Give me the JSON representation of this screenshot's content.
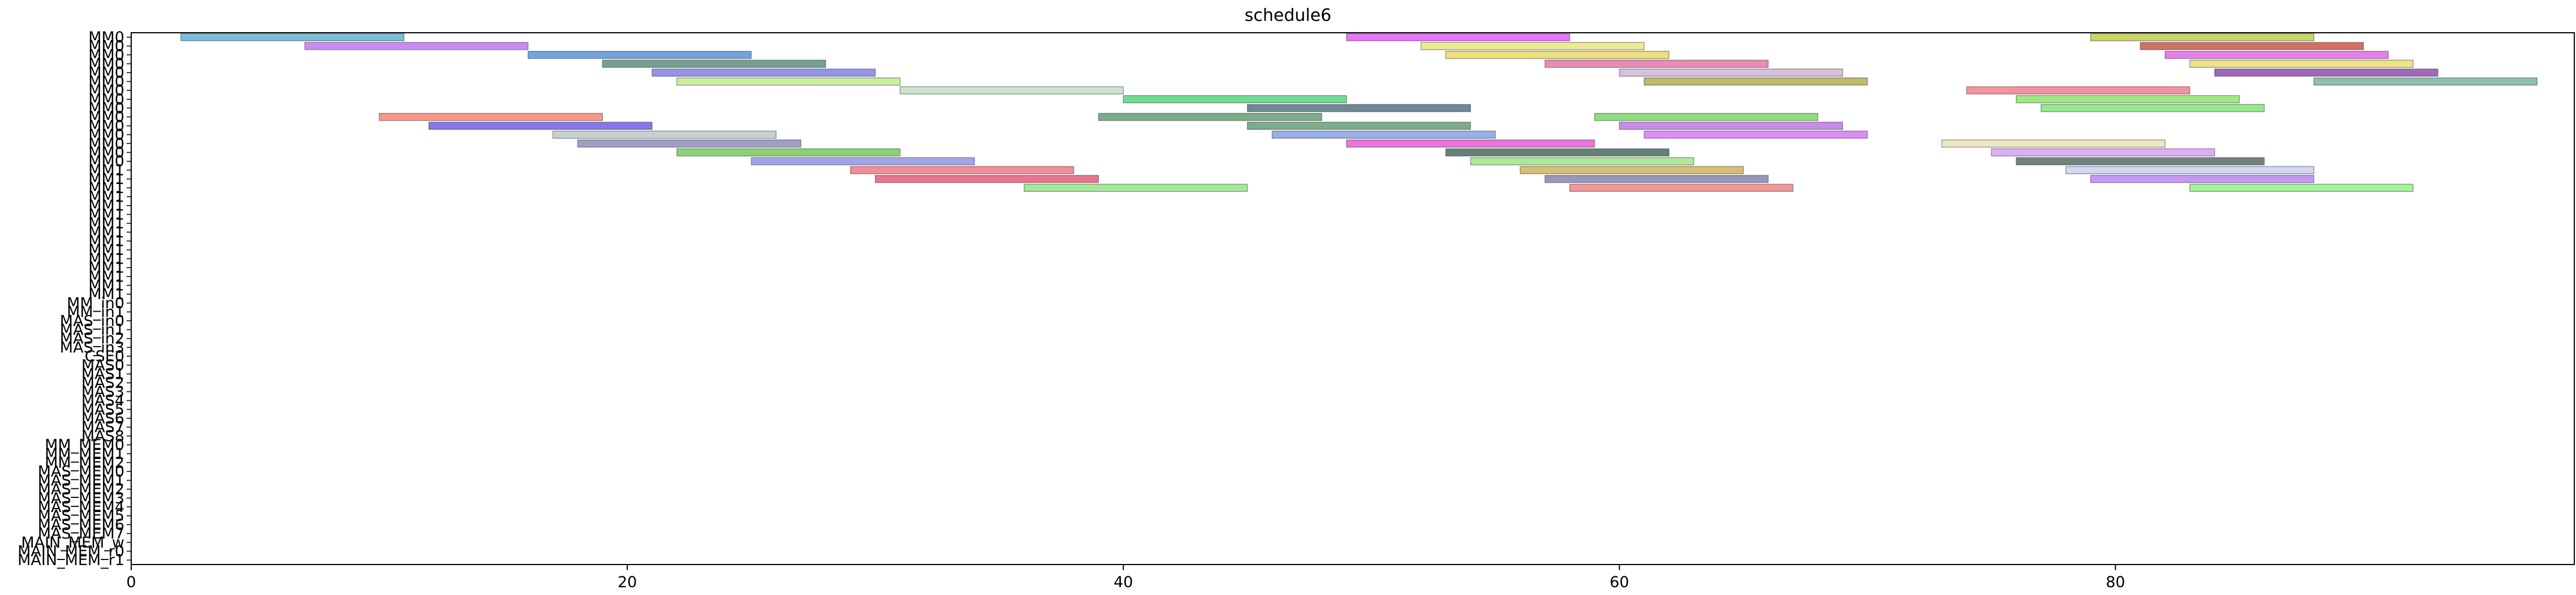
{
  "chart_data": {
    "type": "gantt",
    "title": "schedule6",
    "xlabel": "",
    "ylabel": "",
    "xlim": [
      0,
      98.5
    ],
    "x_ticks": [
      0,
      20,
      40,
      60,
      80
    ],
    "grid": false,
    "rows": [
      "MM0",
      "MM0",
      "MM0",
      "MM0",
      "MM0",
      "MM0",
      "MM0",
      "MM0",
      "MM0",
      "MM0",
      "MM0",
      "MM0",
      "MM0",
      "MM0",
      "MM0",
      "MM1",
      "MM1",
      "MM1",
      "MM1",
      "MM1",
      "MM1",
      "MM1",
      "MM1",
      "MM1",
      "MM1",
      "MM1",
      "MM1",
      "MM1",
      "MM1",
      "MM1",
      "MM_in0",
      "MM_in1",
      "MAS_in0",
      "MAS_in1",
      "MAS_in2",
      "MAS_in3",
      "CSE0",
      "MAS0",
      "MAS1",
      "MAS2",
      "MAS3",
      "MAS4",
      "MAS5",
      "MAS6",
      "MAS7",
      "MAS8",
      "MM_MEM0",
      "MM_MEM1",
      "MM_MEM2",
      "MAS_MEM0",
      "MAS_MEM1",
      "MAS_MEM2",
      "MAS_MEM3",
      "MAS_MEM4",
      "MAS_MEM5",
      "MAS_MEM6",
      "MAS_MEM7",
      "MAIN_MEM_w",
      "MAIN_MEM_r0",
      "MAIN_MEM_r1"
    ],
    "y_tick_labels": [
      "MM0",
      "MM0",
      "MM0",
      "MM0",
      "MM0",
      "MM0",
      "MM0",
      "MM0",
      "MM0",
      "MM0",
      "MM0",
      "MM0",
      "MM0",
      "MM0",
      "MM0",
      "MM1",
      "MM1",
      "MM1",
      "MM1",
      "MM1",
      "MM1",
      "MM1",
      "MM1",
      "MM1",
      "MM1",
      "MM1",
      "MM1",
      "MM1",
      "MM1",
      "MM1",
      "MM_in0",
      "MM_in1",
      "MAS_in0",
      "MAS_in1",
      "MAS_in2",
      "MAS_in3",
      "CSE0",
      "MAS0",
      "MAS1",
      "MAS2",
      "MAS3",
      "MAS4",
      "MAS5",
      "MAS6",
      "MAS7",
      "MAS8",
      "MM_MEM0",
      "MM_MEM1",
      "MM_MEM2",
      "MAS_MEM0",
      "MAS_MEM1",
      "MAS_MEM2",
      "MAS_MEM3",
      "MAS_MEM4",
      "MAS_MEM5",
      "MAS_MEM6",
      "MAS_MEM7",
      "MAIN_MEM_w",
      "MAIN_MEM_r0",
      "MAIN_MEM_r1"
    ],
    "series": [
      {
        "values": [
          [
            0,
            2,
            11,
            "#4aa3c7"
          ],
          [
            0,
            49,
            58,
            "#e040fb"
          ],
          [
            0,
            79,
            88,
            "#b5c72b"
          ],
          [
            1,
            7,
            16,
            "#b45fef"
          ],
          [
            1,
            52,
            61,
            "#e8e06a"
          ],
          [
            1,
            81,
            90,
            "#c0392b"
          ],
          [
            2,
            16,
            25,
            "#3a7fd0"
          ],
          [
            2,
            53,
            62,
            "#e7d24a"
          ],
          [
            2,
            82,
            91,
            "#d94fe0"
          ],
          [
            3,
            19,
            28,
            "#3f7a6a"
          ],
          [
            3,
            57,
            66,
            "#e0609a"
          ],
          [
            3,
            83,
            92,
            "#e8d85a"
          ],
          [
            4,
            21,
            30,
            "#6b6be0"
          ],
          [
            4,
            60,
            69,
            "#c7a9d0"
          ],
          [
            4,
            84,
            93,
            "#7a2fa0"
          ],
          [
            5,
            22,
            31,
            "#b6e878"
          ],
          [
            5,
            61,
            70,
            "#a8a030"
          ],
          [
            5,
            88,
            97,
            "#5fa890"
          ],
          [
            6,
            31,
            40,
            "#b9d9b9"
          ],
          [
            6,
            74,
            83,
            "#f06a78"
          ],
          [
            7,
            40,
            49,
            "#35d06a"
          ],
          [
            7,
            76,
            85,
            "#7ce050"
          ],
          [
            8,
            45,
            54,
            "#3a5a70"
          ],
          [
            8,
            77,
            86,
            "#6ee060"
          ],
          [
            9,
            10,
            19,
            "#f07060"
          ],
          [
            9,
            39,
            48,
            "#4a8c5c"
          ],
          [
            9,
            59,
            68,
            "#6ad050"
          ],
          [
            10,
            12,
            21,
            "#5a40e0"
          ],
          [
            10,
            45,
            54,
            "#4a8c5c"
          ],
          [
            10,
            60,
            69,
            "#b05fe0"
          ],
          [
            11,
            17,
            26,
            "#b0c0c0"
          ],
          [
            11,
            46,
            55,
            "#7090e0"
          ],
          [
            11,
            61,
            70,
            "#d060f0"
          ],
          [
            12,
            18,
            27,
            "#7a7ab0"
          ],
          [
            12,
            49,
            59,
            "#e040d0"
          ],
          [
            12,
            73,
            82,
            "#e8dcb0"
          ],
          [
            13,
            22,
            31,
            "#60c040"
          ],
          [
            13,
            53,
            62,
            "#2a5040"
          ],
          [
            13,
            75,
            84,
            "#d090f0"
          ],
          [
            14,
            25,
            34,
            "#8080e0"
          ],
          [
            14,
            54,
            63,
            "#90e070"
          ],
          [
            14,
            76,
            86,
            "#3a5050"
          ],
          [
            15,
            29,
            38,
            "#f06070"
          ],
          [
            15,
            56,
            65,
            "#c8a840"
          ],
          [
            15,
            78,
            88,
            "#c0c8f0"
          ],
          [
            16,
            30,
            39,
            "#e04060"
          ],
          [
            16,
            57,
            66,
            "#7070a0"
          ],
          [
            16,
            79,
            88,
            "#b070f0"
          ],
          [
            17,
            36,
            45,
            "#80e070"
          ],
          [
            17,
            58,
            67,
            "#f07070"
          ],
          [
            17,
            83,
            92,
            "#80f070"
          ]
        ]
      }
    ]
  }
}
